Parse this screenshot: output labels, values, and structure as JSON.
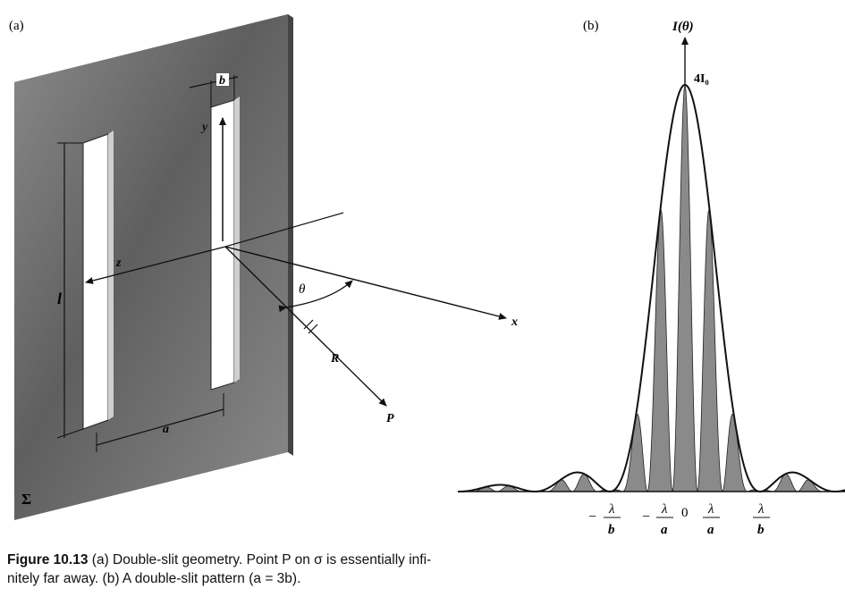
{
  "panels": {
    "a_label": "(a)",
    "b_label": "(b)"
  },
  "panel_a": {
    "labels": {
      "b": "b",
      "y": "y",
      "z": "z",
      "l": "l",
      "theta": "θ",
      "x": "x",
      "R": "R",
      "P": "P",
      "a": "a",
      "sigma": "Σ"
    }
  },
  "panel_b": {
    "y_axis_label": "I(θ)",
    "peak_label": "4I₀",
    "x_ticks": [
      {
        "sign": "−",
        "num": "λ",
        "den": "b"
      },
      {
        "sign": "−",
        "num": "λ",
        "den": "a"
      },
      {
        "sign": "",
        "num": "0",
        "den": ""
      },
      {
        "sign": "",
        "num": "λ",
        "den": "a"
      },
      {
        "sign": "",
        "num": "λ",
        "den": "b"
      }
    ]
  },
  "caption": {
    "figure_number": "Figure 10.13",
    "text_line1": "(a) Double-slit geometry. Point P on σ is essentially infi-",
    "text_line2": "nitely far away. (b) A double-slit pattern (a = 3b)."
  },
  "colors": {
    "plate": "#6f6f6f",
    "fringe": "#8a8a8a",
    "line": "#111111"
  }
}
